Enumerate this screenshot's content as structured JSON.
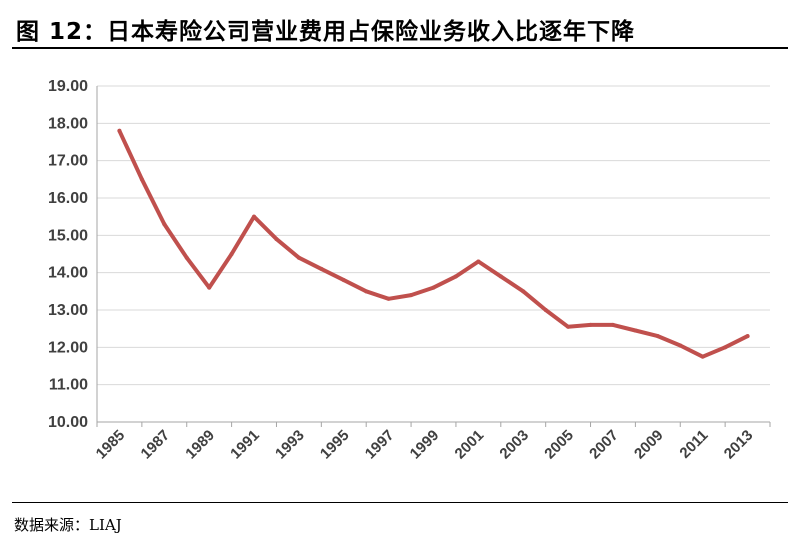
{
  "title": "图 12：日本寿险公司营业费用占保险业务收入比逐年下降",
  "source": "数据来源：LIAJ",
  "colors": {
    "line": "#c0504d",
    "grid": "#d9d9d9",
    "axis": "#a6a6a6",
    "text": "#404040"
  },
  "chart_data": {
    "type": "line",
    "title": "",
    "xlabel": "",
    "ylabel": "",
    "ylim": [
      10,
      19
    ],
    "y_ticks": [
      "10.00",
      "11.00",
      "12.00",
      "13.00",
      "14.00",
      "15.00",
      "16.00",
      "17.00",
      "18.00",
      "19.00"
    ],
    "x_tick_labels": [
      "1985",
      "1987",
      "1989",
      "1991",
      "1993",
      "1995",
      "1997",
      "1999",
      "2001",
      "2003",
      "2005",
      "2007",
      "2009",
      "2011",
      "2013"
    ],
    "grid": true,
    "legend": "none",
    "series": [
      {
        "x": [
          1985,
          1986,
          1987,
          1988,
          1989,
          1990,
          1991,
          1992,
          1993,
          1994,
          1995,
          1996,
          1997,
          1998,
          1999,
          2000,
          2001,
          2002,
          2003,
          2004,
          2005,
          2006,
          2007,
          2008,
          2009,
          2010,
          2011,
          2012,
          2013
        ],
        "values": [
          17.8,
          16.5,
          15.3,
          14.4,
          13.6,
          14.5,
          15.5,
          14.9,
          14.4,
          14.1,
          13.8,
          13.5,
          13.3,
          13.4,
          13.6,
          13.9,
          14.3,
          13.9,
          13.5,
          13.0,
          12.55,
          12.6,
          12.6,
          12.45,
          12.3,
          12.05,
          11.75,
          12.0,
          12.3
        ]
      }
    ]
  }
}
